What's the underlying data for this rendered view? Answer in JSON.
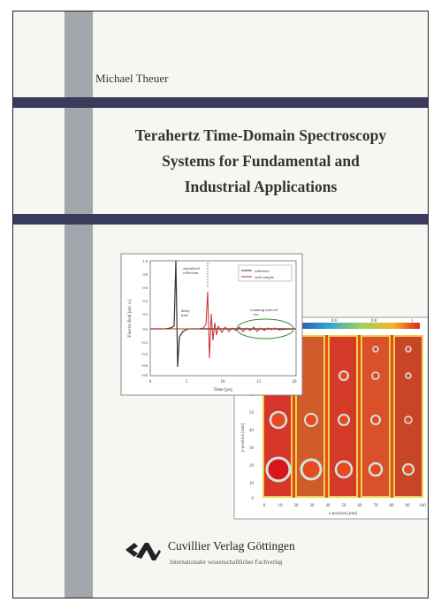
{
  "cover": {
    "author": "Michael Theuer",
    "title_lines": [
      "Terahertz Time-Domain Spectroscopy",
      "Systems for Fundamental and",
      "Industrial Applications"
    ],
    "publisher": {
      "name": "Cuvillier Verlag Göttingen",
      "subtitle": "Internationaler wissenschaftlicher Fachverlag",
      "logo_icon": "cuvillier-logo-icon"
    },
    "colors": {
      "bar": "#3a3b5a",
      "spine": "#a3a6ad"
    }
  },
  "figure_waveform": {
    "ylabel": "Electric field [arb. u.]",
    "xlabel": "Time [ps]",
    "y_ticks": [
      "1.0",
      "0.8",
      "0.6",
      "0.4",
      "0.2",
      "0.0",
      "-0.2",
      "-0.4",
      "-0.6",
      "-0.8"
    ],
    "x_ticks": [
      "0",
      "5",
      "10",
      "15",
      "20"
    ],
    "legend": [
      "reference",
      "with sample"
    ],
    "annotations": [
      "stimulated",
      "reflection",
      "delay",
      "time",
      "scanning interval",
      "for"
    ]
  },
  "figure_map": {
    "ylabel": "y-position [mm]",
    "xlabel": "x-position [mm]",
    "y_ticks": [
      "70",
      "60",
      "50",
      "40",
      "30",
      "20",
      "10",
      "0"
    ],
    "x_ticks": [
      "0",
      "10",
      "20",
      "30",
      "40",
      "50",
      "60",
      "70",
      "80",
      "90",
      "100"
    ],
    "colorbar_ticks": [
      "0.4",
      "0.6",
      "0.8",
      "1"
    ]
  }
}
